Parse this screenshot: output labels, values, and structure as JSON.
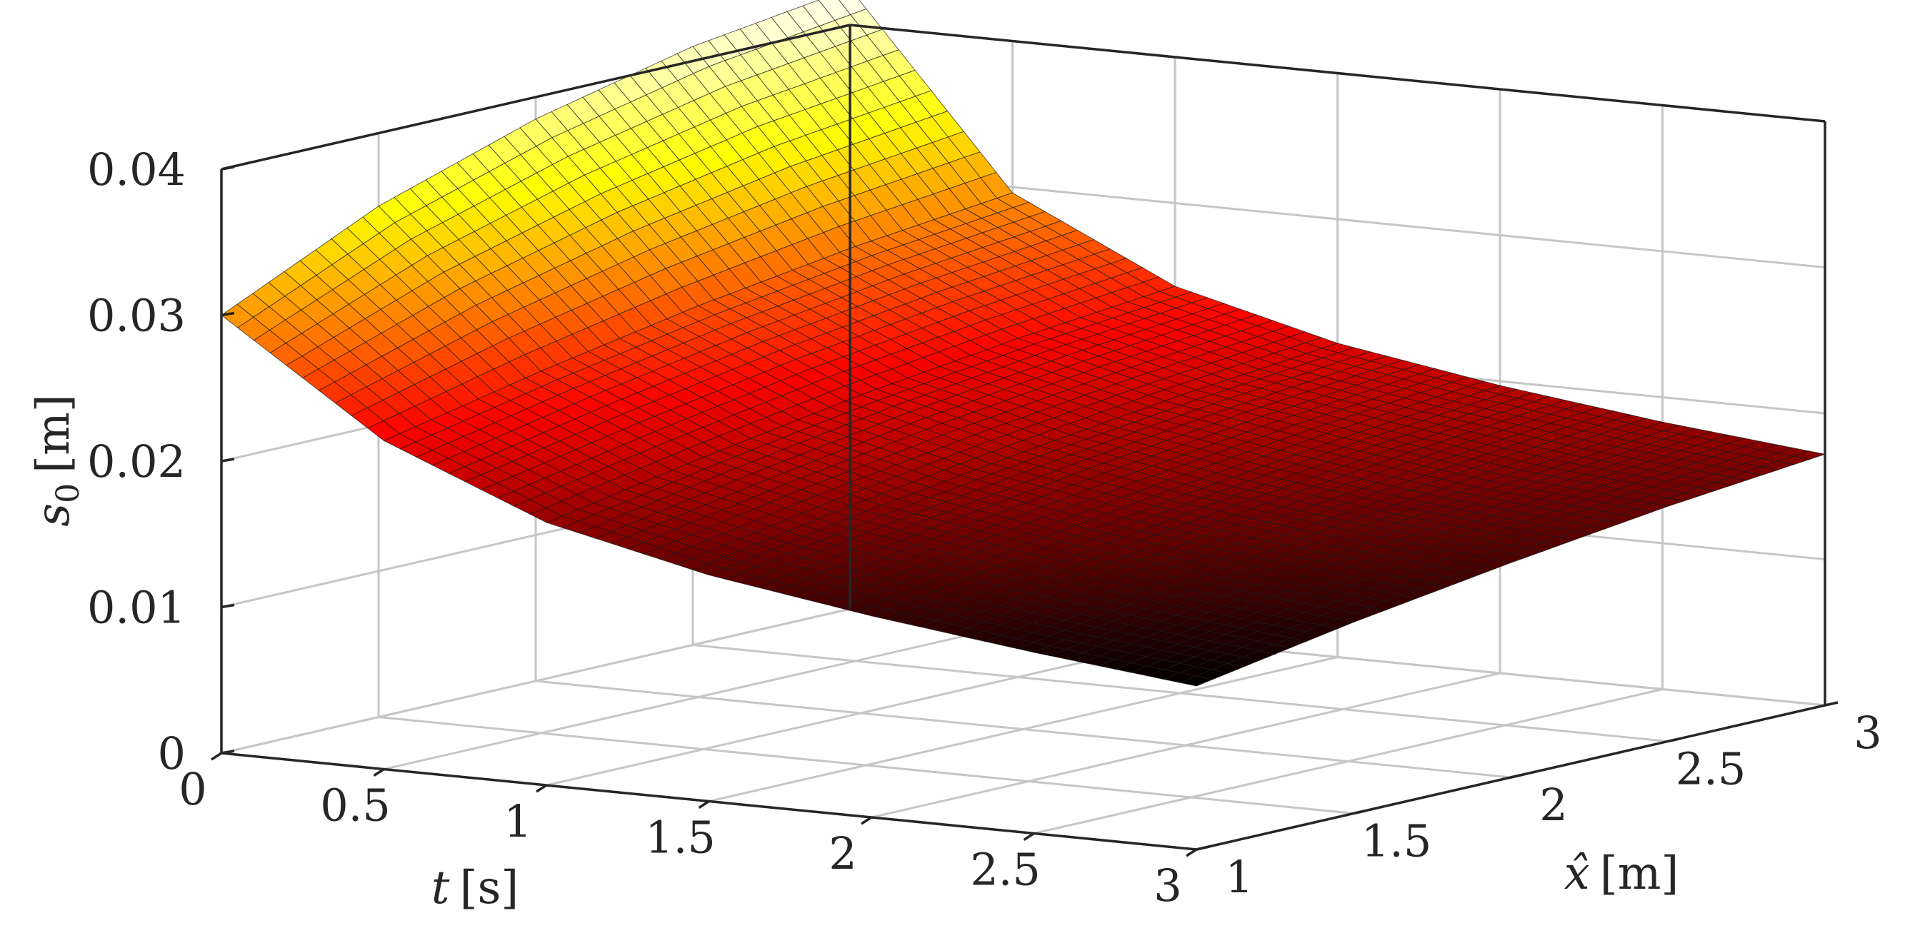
{
  "chart_data": {
    "type": "surface",
    "title": "",
    "xlabel": {
      "symbol": "t",
      "unit": "[s]"
    },
    "ylabel": {
      "symbol": "x̂",
      "unit": "[m]"
    },
    "zlabel": {
      "symbol": "s",
      "subscript": "0",
      "unit": "[m]"
    },
    "t_range": [
      0,
      3
    ],
    "x_range": [
      1,
      3
    ],
    "z_range": [
      0,
      0.04
    ],
    "t_ticks": [
      "0",
      "0.5",
      "1",
      "1.5",
      "2",
      "2.5",
      "3"
    ],
    "x_ticks": [
      "1",
      "1.5",
      "2",
      "2.5",
      "3"
    ],
    "z_ticks": [
      "0",
      "0.01",
      "0.02",
      "0.03",
      "0.04"
    ],
    "t_values": [
      0,
      0.5,
      1,
      1.5,
      2,
      2.5,
      3
    ],
    "x_values": [
      1,
      1.5,
      2,
      2.5,
      3
    ],
    "z_grid": [
      [
        0.03,
        0.035,
        0.0385,
        0.041,
        0.0425
      ],
      [
        0.0225,
        0.0248,
        0.0268,
        0.0284,
        0.0296
      ],
      [
        0.018,
        0.02,
        0.0218,
        0.0232,
        0.0243
      ],
      [
        0.0155,
        0.0174,
        0.019,
        0.0204,
        0.0215
      ],
      [
        0.0138,
        0.0156,
        0.0172,
        0.0186,
        0.0197
      ],
      [
        0.0124,
        0.0142,
        0.0158,
        0.0171,
        0.0183
      ],
      [
        0.0112,
        0.0131,
        0.0147,
        0.0161,
        0.0172
      ]
    ],
    "colormap": "hot",
    "grid": true
  }
}
